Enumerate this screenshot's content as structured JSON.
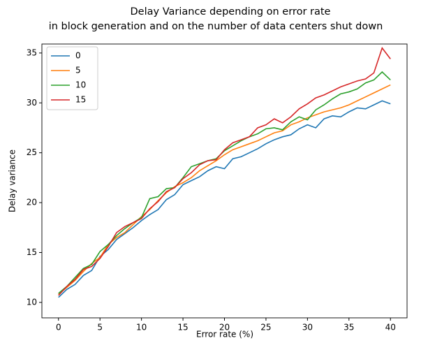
{
  "chart_data": {
    "type": "line",
    "title": [
      "Delay Variance depending on error rate",
      "in block generation and on the number of data centers shut down"
    ],
    "x_label": "Error rate (%)",
    "y_label": "Delay variance",
    "x": [
      0,
      1,
      2,
      3,
      4,
      5,
      6,
      7,
      8,
      9,
      10,
      11,
      12,
      13,
      14,
      15,
      16,
      17,
      18,
      19,
      20,
      21,
      22,
      23,
      24,
      25,
      26,
      27,
      28,
      29,
      30,
      31,
      32,
      33,
      34,
      35,
      36,
      37,
      38,
      39,
      40
    ],
    "series": [
      {
        "name": "0",
        "color": "#1f77b4",
        "values": [
          10.5,
          11.3,
          11.8,
          12.7,
          13.2,
          14.6,
          15.3,
          16.3,
          16.9,
          17.5,
          18.2,
          18.8,
          19.3,
          20.3,
          20.8,
          21.8,
          22.2,
          22.6,
          23.2,
          23.6,
          23.4,
          24.4,
          24.6,
          25.0,
          25.4,
          25.9,
          26.3,
          26.6,
          26.8,
          27.4,
          27.8,
          27.5,
          28.4,
          28.7,
          28.6,
          29.1,
          29.5,
          29.4,
          29.8,
          30.2,
          29.9
        ]
      },
      {
        "name": "5",
        "color": "#ff7f0e",
        "values": [
          10.8,
          11.5,
          12.2,
          13.1,
          13.9,
          14.5,
          15.8,
          16.5,
          17.0,
          17.8,
          18.6,
          19.3,
          20.2,
          21.0,
          21.6,
          22.0,
          22.5,
          23.2,
          23.7,
          24.2,
          24.8,
          25.3,
          25.6,
          25.9,
          26.2,
          26.6,
          27.0,
          27.2,
          27.8,
          28.1,
          28.5,
          28.8,
          29.1,
          29.3,
          29.5,
          29.8,
          30.2,
          30.6,
          31.0,
          31.4,
          31.8
        ]
      },
      {
        "name": "10",
        "color": "#2ca02c",
        "values": [
          10.9,
          11.6,
          12.5,
          13.4,
          13.8,
          15.1,
          15.8,
          16.7,
          17.4,
          18.0,
          18.5,
          20.4,
          20.6,
          21.4,
          21.5,
          22.5,
          23.6,
          23.9,
          24.2,
          24.4,
          25.2,
          25.7,
          26.2,
          26.6,
          26.9,
          27.4,
          27.5,
          27.3,
          28.1,
          28.6,
          28.3,
          29.3,
          29.8,
          30.4,
          30.9,
          31.1,
          31.4,
          32.0,
          32.3,
          33.1,
          32.3
        ]
      },
      {
        "name": "15",
        "color": "#d62728",
        "values": [
          10.7,
          11.6,
          12.3,
          13.3,
          13.6,
          14.4,
          15.6,
          17.0,
          17.6,
          18.0,
          18.4,
          19.4,
          20.1,
          21.1,
          21.5,
          22.4,
          23.0,
          23.8,
          24.2,
          24.3,
          25.3,
          26.0,
          26.3,
          26.6,
          27.5,
          27.8,
          28.4,
          28.0,
          28.6,
          29.4,
          29.9,
          30.5,
          30.8,
          31.2,
          31.6,
          31.9,
          32.2,
          32.4,
          33.0,
          35.5,
          34.4
        ]
      }
    ],
    "xlim": [
      -2,
      42
    ],
    "ylim": [
      8.45,
      35.9
    ],
    "xticks": [
      0,
      5,
      10,
      15,
      20,
      25,
      30,
      35,
      40
    ],
    "yticks": [
      10,
      15,
      20,
      25,
      30,
      35
    ],
    "legend": "upper left",
    "grid": false
  }
}
